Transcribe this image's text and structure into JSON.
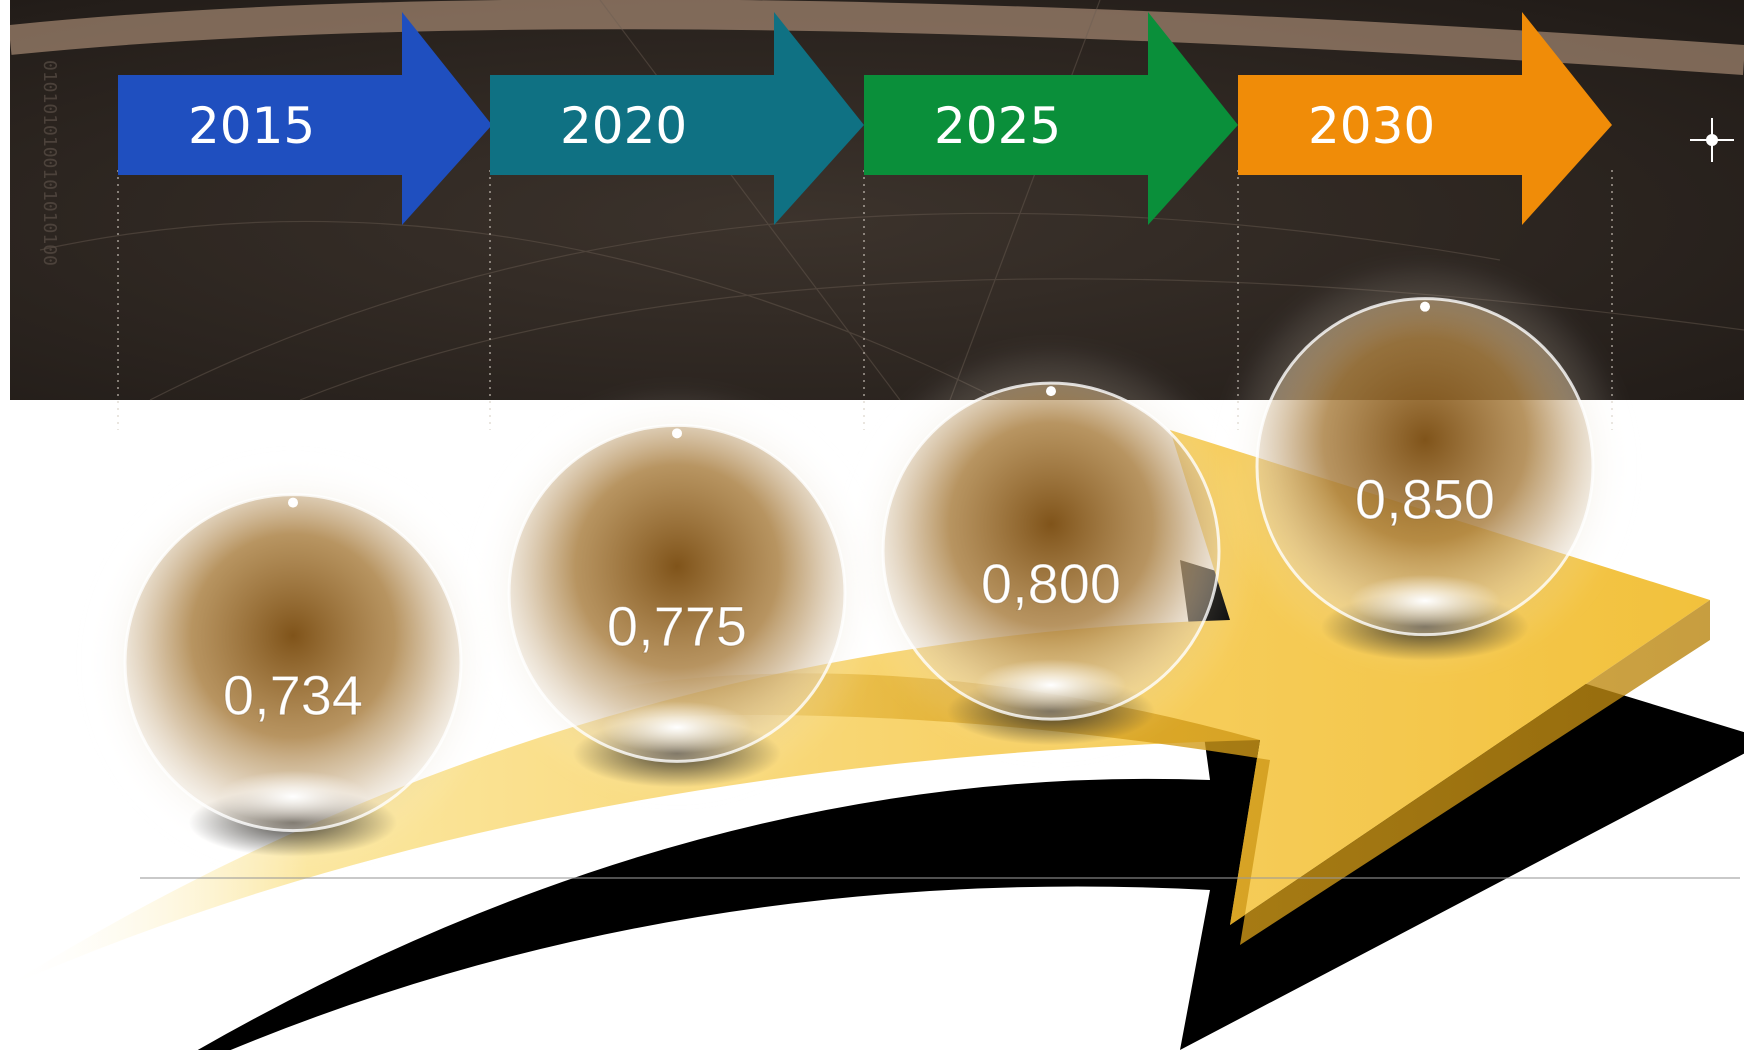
{
  "colors": {
    "bg_dark": "#2b2420",
    "arrow_2015": "#1f4fbf",
    "arrow_2020": "#0f7183",
    "arrow_2025": "#0a8f3a",
    "arrow_2030": "#f08c08",
    "big_arrow": "#f7c948",
    "sphere_core": "#8a5a14"
  },
  "chart_data": {
    "type": "scatter",
    "categories": [
      "2015",
      "2020",
      "2025",
      "2030"
    ],
    "values": [
      "0,734",
      "0,775",
      "0,800",
      "0,850"
    ],
    "numeric_values": [
      0.734,
      0.775,
      0.8,
      0.85
    ],
    "title": "",
    "xlabel": "",
    "ylabel": "",
    "ylim": [
      0.7,
      0.88
    ]
  }
}
